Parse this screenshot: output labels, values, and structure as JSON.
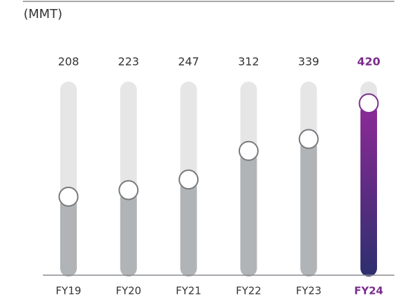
{
  "chart_data": {
    "type": "lollipop-bar",
    "unit_label": "(MMT)",
    "categories": [
      "FY19",
      "FY20",
      "FY21",
      "FY22",
      "FY23",
      "FY24"
    ],
    "values": [
      208,
      223,
      247,
      312,
      339,
      420
    ],
    "color": "#b1b4b6",
    "track_color": "#e6e6e7",
    "highlight": "FY24",
    "highlight_color": "#7b2d8e"
  }
}
